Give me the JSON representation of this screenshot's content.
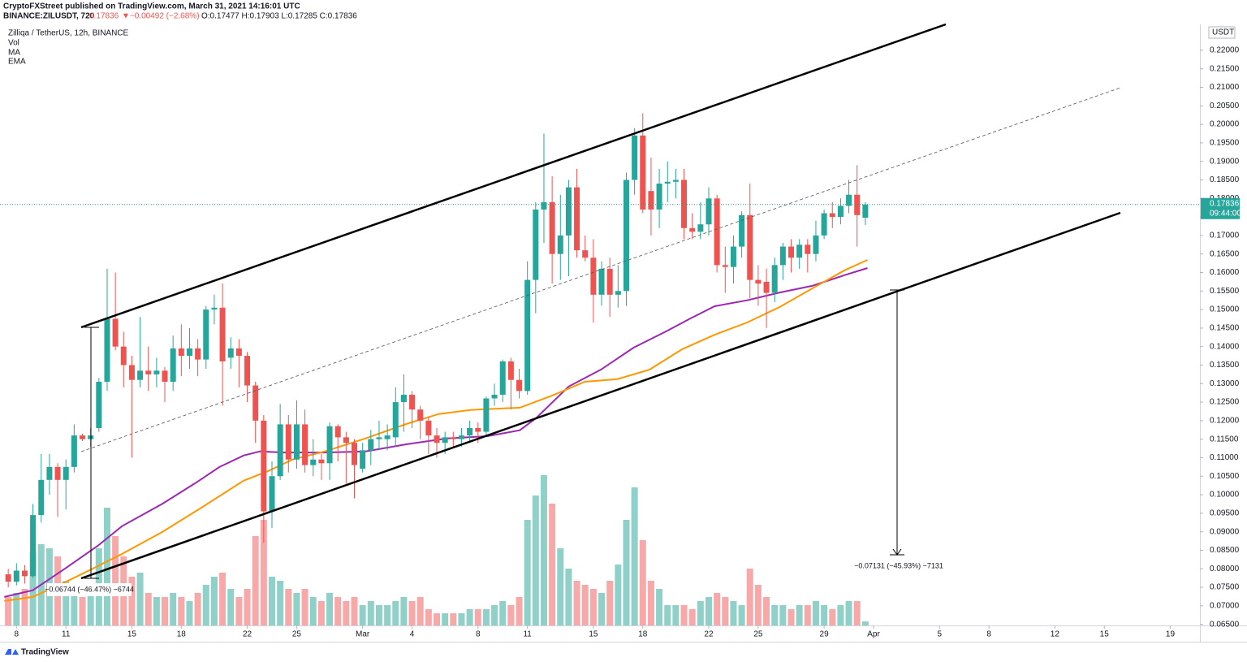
{
  "header": {
    "publisher": "CryptoFXStreet published on TradingView.com, March 31, 2021 14:16:01 UTC",
    "symbol": "BINANCE:ZILUSDT, 720",
    "price": "0.17836",
    "change": "▼−0.00492 (−2.68%)",
    "ohlc": "O:0.17477 H:0.17903 L:0.17285 C:0.17836"
  },
  "legend": {
    "title": "Zilliqa / TetherUS, 12h, BINANCE",
    "items": [
      "Vol",
      "MA",
      "EMA"
    ]
  },
  "measurements": [
    "−0.06744 (−46.47%) −6744",
    "−0.07131 (−45.93%) −7131"
  ],
  "footer": "TradingView",
  "chart_data": {
    "type": "candlestick",
    "price_axis_label": "USDT",
    "last_price_label": "0.17836",
    "countdown": "09:44:00",
    "up_color": "#26a69a",
    "down_color": "#ef5350",
    "volume_up_color": "#8fd1c9",
    "volume_down_color": "#f6a9a8",
    "xlim": [
      -1,
      71.8
    ],
    "ylim": [
      0.0647,
      0.227
    ],
    "volume_ylim": [
      0,
      740
    ],
    "grid": false,
    "xticks": [
      {
        "value": 0,
        "label": "8"
      },
      {
        "value": 3,
        "label": "11"
      },
      {
        "value": 7,
        "label": "15"
      },
      {
        "value": 10,
        "label": "18"
      },
      {
        "value": 14,
        "label": "22"
      },
      {
        "value": 17,
        "label": "25"
      },
      {
        "value": 21,
        "label": "Mar"
      },
      {
        "value": 24,
        "label": "4"
      },
      {
        "value": 28,
        "label": "8"
      },
      {
        "value": 31,
        "label": "11"
      },
      {
        "value": 35,
        "label": "15"
      },
      {
        "value": 38,
        "label": "18"
      },
      {
        "value": 42,
        "label": "22"
      },
      {
        "value": 45,
        "label": "25"
      },
      {
        "value": 49,
        "label": "29"
      },
      {
        "value": 52,
        "label": "Apr"
      },
      {
        "value": 56,
        "label": "5"
      },
      {
        "value": 59,
        "label": "8"
      },
      {
        "value": 63,
        "label": "12"
      },
      {
        "value": 66,
        "label": "15"
      },
      {
        "value": 70,
        "label": "19"
      }
    ],
    "yticks": [
      {
        "value": 0.22,
        "label": "0.22000"
      },
      {
        "value": 0.215,
        "label": "0.21500"
      },
      {
        "value": 0.21,
        "label": "0.21000"
      },
      {
        "value": 0.205,
        "label": "0.20500"
      },
      {
        "value": 0.2,
        "label": "0.20000"
      },
      {
        "value": 0.195,
        "label": "0.19500"
      },
      {
        "value": 0.19,
        "label": "0.19000"
      },
      {
        "value": 0.185,
        "label": "0.18500"
      },
      {
        "value": 0.18,
        "label": "0.18000"
      },
      {
        "value": 0.175,
        "label": "0.17500"
      },
      {
        "value": 0.17,
        "label": "0.17000"
      },
      {
        "value": 0.165,
        "label": "0.16500"
      },
      {
        "value": 0.16,
        "label": "0.16000"
      },
      {
        "value": 0.155,
        "label": "0.15500"
      },
      {
        "value": 0.15,
        "label": "0.15000"
      },
      {
        "value": 0.145,
        "label": "0.14500"
      },
      {
        "value": 0.14,
        "label": "0.14000"
      },
      {
        "value": 0.135,
        "label": "0.13500"
      },
      {
        "value": 0.13,
        "label": "0.13000"
      },
      {
        "value": 0.125,
        "label": "0.12500"
      },
      {
        "value": 0.12,
        "label": "0.12000"
      },
      {
        "value": 0.115,
        "label": "0.11500"
      },
      {
        "value": 0.11,
        "label": "0.11000"
      },
      {
        "value": 0.105,
        "label": "0.10500"
      },
      {
        "value": 0.1,
        "label": "0.10000"
      },
      {
        "value": 0.095,
        "label": "0.09500"
      },
      {
        "value": 0.09,
        "label": "0.09000"
      },
      {
        "value": 0.085,
        "label": "0.08500"
      },
      {
        "value": 0.08,
        "label": "0.08000"
      },
      {
        "value": 0.075,
        "label": "0.07500"
      },
      {
        "value": 0.07,
        "label": "0.07000"
      },
      {
        "value": 0.065,
        "label": "0.06500"
      }
    ],
    "x": [
      -0.5,
      0,
      0.5,
      1,
      1.5,
      2,
      2.5,
      3,
      3.5,
      4,
      4.5,
      5,
      5.5,
      6,
      6.5,
      7,
      7.5,
      8,
      8.5,
      9,
      9.5,
      10,
      10.5,
      11,
      11.5,
      12,
      12.5,
      13,
      13.5,
      14,
      14.5,
      15,
      15.5,
      16,
      16.5,
      17,
      17.5,
      18,
      18.5,
      19,
      19.5,
      20,
      20.5,
      21,
      21.5,
      22,
      22.5,
      23,
      23.5,
      24,
      24.5,
      25,
      25.5,
      26,
      26.5,
      27,
      27.5,
      28,
      28.5,
      29,
      29.5,
      30,
      30.5,
      31,
      31.5,
      32,
      32.5,
      33,
      33.5,
      34,
      34.5,
      35,
      35.5,
      36,
      36.5,
      37,
      37.5,
      38,
      38.5,
      39,
      39.5,
      40,
      40.5,
      41,
      41.5,
      42,
      42.5,
      43,
      43.5,
      44,
      44.5,
      45,
      45.5,
      46,
      46.5,
      47,
      47.5,
      48,
      48.5,
      49,
      49.5,
      50,
      50.5,
      51,
      51.5
    ],
    "open": [
      0.0785,
      0.0765,
      0.0795,
      0.078,
      0.0945,
      0.104,
      0.1075,
      0.104,
      0.1075,
      0.116,
      0.115,
      0.118,
      0.1305,
      0.1475,
      0.14,
      0.135,
      0.131,
      0.1335,
      0.1325,
      0.1335,
      0.1305,
      0.1395,
      0.1375,
      0.1395,
      0.1365,
      0.15,
      0.1505,
      0.137,
      0.1395,
      0.1375,
      0.1295,
      0.12,
      0.0955,
      0.105,
      0.119,
      0.1095,
      0.119,
      0.108,
      0.1095,
      0.1085,
      0.1185,
      0.1155,
      0.114,
      0.107,
      0.112,
      0.115,
      0.115,
      0.1155,
      0.125,
      0.127,
      0.123,
      0.12,
      0.116,
      0.114,
      0.1155,
      0.115,
      0.116,
      0.118,
      0.117,
      0.126,
      0.127,
      0.136,
      0.131,
      0.128,
      0.158,
      0.177,
      0.179,
      0.165,
      0.17,
      0.183,
      0.166,
      0.164,
      0.154,
      0.161,
      0.154,
      0.155,
      0.185,
      0.197,
      0.182,
      0.177,
      0.184,
      0.1845,
      0.185,
      0.172,
      0.171,
      0.173,
      0.18,
      0.162,
      0.1615,
      0.167,
      0.1755,
      0.158,
      0.1575,
      0.1545,
      0.162,
      0.167,
      0.164,
      0.1675,
      0.165,
      0.17,
      0.176,
      0.175,
      0.178,
      0.181,
      0.17477
    ],
    "high": [
      0.08,
      0.0815,
      0.081,
      0.0975,
      0.111,
      0.111,
      0.1085,
      0.1095,
      0.119,
      0.1165,
      0.118,
      0.1315,
      0.161,
      0.16,
      0.144,
      0.1375,
      0.148,
      0.14,
      0.137,
      0.1345,
      0.143,
      0.146,
      0.145,
      0.142,
      0.151,
      0.154,
      0.157,
      0.1425,
      0.142,
      0.1385,
      0.1305,
      0.1215,
      0.109,
      0.1245,
      0.1215,
      0.1255,
      0.123,
      0.115,
      0.111,
      0.1195,
      0.119,
      0.117,
      0.115,
      0.114,
      0.1175,
      0.12,
      0.119,
      0.129,
      0.1325,
      0.128,
      0.124,
      0.121,
      0.118,
      0.117,
      0.117,
      0.118,
      0.12,
      0.1195,
      0.1265,
      0.13,
      0.1365,
      0.137,
      0.134,
      0.163,
      0.179,
      0.1975,
      0.186,
      0.181,
      0.185,
      0.188,
      0.17,
      0.169,
      0.163,
      0.164,
      0.162,
      0.187,
      0.199,
      0.203,
      0.191,
      0.188,
      0.19,
      0.188,
      0.188,
      0.176,
      0.179,
      0.183,
      0.181,
      0.167,
      0.17,
      0.1765,
      0.184,
      0.162,
      0.161,
      0.164,
      0.168,
      0.169,
      0.169,
      0.169,
      0.174,
      0.177,
      0.179,
      0.18,
      0.185,
      0.189,
      0.17903
    ],
    "low": [
      0.075,
      0.0755,
      0.076,
      0.0775,
      0.0925,
      0.1,
      0.094,
      0.096,
      0.106,
      0.1145,
      0.113,
      0.117,
      0.128,
      0.139,
      0.129,
      0.11,
      0.129,
      0.128,
      0.129,
      0.125,
      0.128,
      0.132,
      0.134,
      0.132,
      0.134,
      0.146,
      0.124,
      0.134,
      0.129,
      0.125,
      0.114,
      0.087,
      0.091,
      0.104,
      0.106,
      0.107,
      0.106,
      0.105,
      0.104,
      0.104,
      0.109,
      0.103,
      0.099,
      0.106,
      0.108,
      0.112,
      0.112,
      0.113,
      0.117,
      0.118,
      0.115,
      0.111,
      0.11,
      0.111,
      0.113,
      0.113,
      0.114,
      0.114,
      0.116,
      0.124,
      0.125,
      0.123,
      0.126,
      0.127,
      0.149,
      0.168,
      0.157,
      0.158,
      0.159,
      0.164,
      0.163,
      0.1465,
      0.151,
      0.148,
      0.1505,
      0.151,
      0.181,
      0.176,
      0.17,
      0.172,
      0.179,
      0.18,
      0.169,
      0.169,
      0.169,
      0.17,
      0.16,
      0.1545,
      0.157,
      0.164,
      0.153,
      0.151,
      0.145,
      0.152,
      0.158,
      0.16,
      0.161,
      0.16,
      0.163,
      0.169,
      0.172,
      0.173,
      0.176,
      0.167,
      0.17285
    ],
    "close": [
      0.0765,
      0.0795,
      0.078,
      0.0945,
      0.104,
      0.1075,
      0.104,
      0.1075,
      0.116,
      0.115,
      0.116,
      0.1305,
      0.1475,
      0.14,
      0.135,
      0.131,
      0.1335,
      0.1325,
      0.1335,
      0.1305,
      0.1395,
      0.1375,
      0.1395,
      0.1365,
      0.15,
      0.1505,
      0.136,
      0.1395,
      0.1375,
      0.1295,
      0.12,
      0.0955,
      0.105,
      0.119,
      0.1095,
      0.119,
      0.108,
      0.1095,
      0.1085,
      0.1185,
      0.1155,
      0.114,
      0.108,
      0.112,
      0.115,
      0.1155,
      0.116,
      0.125,
      0.127,
      0.123,
      0.12,
      0.116,
      0.114,
      0.1155,
      0.115,
      0.116,
      0.118,
      0.117,
      0.126,
      0.127,
      0.136,
      0.131,
      0.128,
      0.158,
      0.177,
      0.179,
      0.165,
      0.17,
      0.183,
      0.166,
      0.164,
      0.154,
      0.161,
      0.154,
      0.155,
      0.185,
      0.197,
      0.177,
      0.177,
      0.184,
      0.1845,
      0.185,
      0.172,
      0.171,
      0.173,
      0.18,
      0.162,
      0.1615,
      0.167,
      0.1755,
      0.158,
      0.157,
      0.1545,
      0.162,
      0.167,
      0.164,
      0.1675,
      0.165,
      0.17,
      0.176,
      0.175,
      0.178,
      0.181,
      0.1755,
      0.17836
    ],
    "volume": [
      35,
      40,
      45,
      90,
      100,
      95,
      85,
      55,
      45,
      35,
      50,
      95,
      145,
      110,
      85,
      60,
      65,
      40,
      35,
      35,
      40,
      35,
      30,
      40,
      50,
      60,
      65,
      45,
      35,
      45,
      110,
      130,
      60,
      55,
      45,
      40,
      45,
      35,
      30,
      40,
      35,
      30,
      35,
      25,
      30,
      25,
      25,
      30,
      35,
      30,
      35,
      20,
      15,
      15,
      15,
      15,
      20,
      20,
      20,
      25,
      30,
      25,
      35,
      130,
      160,
      185,
      150,
      95,
      70,
      55,
      50,
      45,
      40,
      55,
      75,
      130,
      170,
      105,
      55,
      45,
      25,
      25,
      25,
      20,
      30,
      35,
      40,
      35,
      30,
      25,
      70,
      50,
      35,
      25,
      25,
      20,
      25,
      25,
      30,
      25,
      20,
      25,
      30,
      30,
      5
    ],
    "series": [
      {
        "name": "MA",
        "color": "#9c27b0",
        "x": [
          -0.74,
          0.99,
          2.96,
          4.93,
          6.4,
          8.87,
          10.84,
          12.32,
          13.79,
          14.78,
          16.26,
          18.72,
          21.18,
          23.65,
          26.11,
          28.57,
          30.54,
          31.53,
          33.5,
          35.47,
          37.44,
          39.41,
          40.89,
          42.36,
          44.33,
          46.31,
          48.28,
          50.25,
          51.63
        ],
        "values": [
          0.0724,
          0.0742,
          0.0801,
          0.0862,
          0.0915,
          0.0976,
          0.1031,
          0.1075,
          0.1106,
          0.1117,
          0.1114,
          0.1114,
          0.1117,
          0.1136,
          0.1152,
          0.1158,
          0.1174,
          0.1207,
          0.1292,
          0.1338,
          0.1397,
          0.1441,
          0.1476,
          0.1509,
          0.1525,
          0.1546,
          0.1564,
          0.1593,
          0.1612
        ]
      },
      {
        "name": "EMA",
        "color": "#ff9800",
        "x": [
          -0.74,
          0.99,
          2.96,
          4.93,
          6.4,
          8.87,
          11.33,
          13.79,
          15.27,
          16.75,
          18.72,
          21.18,
          23.65,
          25.62,
          27.59,
          29.56,
          30.54,
          32.51,
          34.48,
          36.45,
          38.42,
          40.39,
          42.36,
          44.33,
          46.31,
          48.28,
          50.25,
          51.63
        ],
        "values": [
          0.0713,
          0.0724,
          0.0764,
          0.0807,
          0.084,
          0.09,
          0.0968,
          0.1038,
          0.1064,
          0.1095,
          0.1117,
          0.1152,
          0.1191,
          0.1218,
          0.1229,
          0.1233,
          0.1235,
          0.1268,
          0.1305,
          0.1312,
          0.1338,
          0.1393,
          0.1432,
          0.1465,
          0.1507,
          0.1557,
          0.1606,
          0.1634
        ]
      }
    ]
  }
}
